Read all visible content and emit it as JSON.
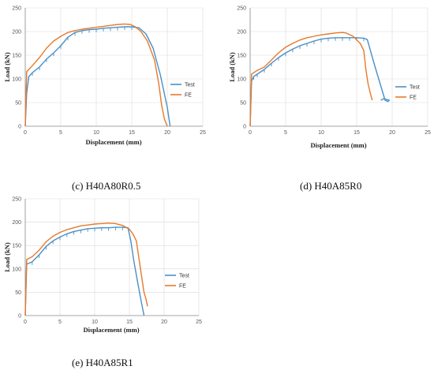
{
  "colors": {
    "test": "#4a8fc7",
    "fe": "#e8792b"
  },
  "captions": {
    "c": "(c) H40A80R0.5",
    "d": "(d) H40A85R0",
    "e": "(e) H40A85R1"
  },
  "chart_data": [
    {
      "type": "line",
      "xlabel": "Displacement (mm)",
      "ylabel": "Load (kN)",
      "xlim": [
        0,
        25
      ],
      "ylim": [
        0,
        250
      ],
      "xticks": [
        "0",
        "5",
        "10",
        "15",
        "20",
        "25"
      ],
      "yticks": [
        "0",
        "50",
        "100",
        "150",
        "200",
        "250"
      ],
      "grid": true,
      "legend": "right",
      "series": [
        {
          "name": "Test",
          "points": [
            [
              0,
              0
            ],
            [
              0.2,
              70
            ],
            [
              0.5,
              105
            ],
            [
              1,
              113
            ],
            [
              2,
              125
            ],
            [
              3,
              142
            ],
            [
              4,
              155
            ],
            [
              5,
              170
            ],
            [
              6,
              188
            ],
            [
              7,
              198
            ],
            [
              8,
              202
            ],
            [
              9,
              204
            ],
            [
              10,
              205
            ],
            [
              11,
              207
            ],
            [
              12,
              208
            ],
            [
              13,
              209
            ],
            [
              14,
              210
            ],
            [
              15,
              210
            ],
            [
              16,
              208
            ],
            [
              17,
              195
            ],
            [
              18,
              165
            ],
            [
              19,
              110
            ],
            [
              20,
              40
            ],
            [
              20.4,
              0
            ]
          ]
        },
        {
          "name": "FE",
          "points": [
            [
              0,
              0
            ],
            [
              0.2,
              115
            ],
            [
              1,
              128
            ],
            [
              2,
              145
            ],
            [
              3,
              165
            ],
            [
              4,
              180
            ],
            [
              5,
              190
            ],
            [
              6,
              198
            ],
            [
              7,
              202
            ],
            [
              8,
              205
            ],
            [
              9,
              207
            ],
            [
              10,
              209
            ],
            [
              11,
              211
            ],
            [
              12,
              213
            ],
            [
              13,
              215
            ],
            [
              14,
              216
            ],
            [
              14.8,
              215
            ],
            [
              15.5,
              210
            ],
            [
              16.3,
              200
            ],
            [
              17.2,
              180
            ],
            [
              18.2,
              140
            ],
            [
              18.8,
              90
            ],
            [
              19.2,
              45
            ],
            [
              19.6,
              15
            ],
            [
              20,
              0
            ]
          ]
        }
      ]
    },
    {
      "type": "line",
      "xlabel": "Displacement (mm)",
      "ylabel": "Load  (kN)",
      "xlim": [
        0,
        25
      ],
      "ylim": [
        0,
        250
      ],
      "xticks": [
        "0",
        "5",
        "10",
        "15",
        "20",
        "25"
      ],
      "yticks": [
        "0",
        "50",
        "100",
        "150",
        "200",
        "250"
      ],
      "grid": true,
      "legend": "right",
      "series": [
        {
          "name": "Test",
          "points": [
            [
              0,
              0
            ],
            [
              0.2,
              95
            ],
            [
              0.5,
              105
            ],
            [
              1,
              110
            ],
            [
              2,
              120
            ],
            [
              3,
              133
            ],
            [
              4,
              145
            ],
            [
              5,
              155
            ],
            [
              6,
              163
            ],
            [
              7,
              170
            ],
            [
              8,
              175
            ],
            [
              9,
              180
            ],
            [
              10,
              184
            ],
            [
              11,
              186
            ],
            [
              12,
              187
            ],
            [
              13,
              187
            ],
            [
              14,
              187
            ],
            [
              15,
              187
            ],
            [
              16,
              186
            ],
            [
              16.5,
              183
            ],
            [
              17.5,
              130
            ],
            [
              18.5,
              80
            ],
            [
              19,
              55
            ],
            [
              19.4,
              52
            ],
            [
              19.6,
              55
            ],
            [
              18.8,
              58
            ],
            [
              18.4,
              55
            ]
          ]
        },
        {
          "name": "FE",
          "points": [
            [
              0,
              0
            ],
            [
              0.2,
              110
            ],
            [
              1,
              118
            ],
            [
              2,
              125
            ],
            [
              3,
              140
            ],
            [
              4,
              155
            ],
            [
              5,
              167
            ],
            [
              6,
              175
            ],
            [
              7,
              182
            ],
            [
              8,
              187
            ],
            [
              9,
              190
            ],
            [
              10,
              193
            ],
            [
              11,
              195
            ],
            [
              12,
              197
            ],
            [
              13,
              198
            ],
            [
              13.5,
              197
            ],
            [
              14.5,
              190
            ],
            [
              15.5,
              175
            ],
            [
              16,
              160
            ],
            [
              16.3,
              120
            ],
            [
              16.6,
              90
            ],
            [
              17,
              65
            ],
            [
              17.2,
              55
            ]
          ]
        }
      ]
    },
    {
      "type": "line",
      "xlabel": "Displacement (mm)",
      "ylabel": "Load (kN)",
      "xlim": [
        0,
        25
      ],
      "ylim": [
        0,
        250
      ],
      "xticks": [
        "0",
        "5",
        "10",
        "15",
        "20",
        "25"
      ],
      "yticks": [
        "0",
        "50",
        "100",
        "150",
        "200",
        "250"
      ],
      "grid": true,
      "legend": "right",
      "series": [
        {
          "name": "Test",
          "points": [
            [
              0,
              0
            ],
            [
              0.2,
              110
            ],
            [
              1,
              115
            ],
            [
              2,
              130
            ],
            [
              3,
              148
            ],
            [
              4,
              160
            ],
            [
              5,
              168
            ],
            [
              6,
              175
            ],
            [
              7,
              180
            ],
            [
              8,
              183
            ],
            [
              9,
              186
            ],
            [
              10,
              187
            ],
            [
              11,
              188
            ],
            [
              12,
              188
            ],
            [
              13,
              189
            ],
            [
              14,
              189
            ],
            [
              14.8,
              188
            ],
            [
              15.2,
              160
            ],
            [
              15.6,
              120
            ],
            [
              16.2,
              70
            ],
            [
              16.7,
              30
            ],
            [
              17.1,
              0
            ]
          ]
        },
        {
          "name": "FE",
          "points": [
            [
              0,
              0
            ],
            [
              0.2,
              120
            ],
            [
              1,
              126
            ],
            [
              2,
              140
            ],
            [
              3,
              158
            ],
            [
              4,
              170
            ],
            [
              5,
              178
            ],
            [
              6,
              184
            ],
            [
              7,
              188
            ],
            [
              8,
              192
            ],
            [
              9,
              194
            ],
            [
              10,
              196
            ],
            [
              11,
              197
            ],
            [
              12,
              198
            ],
            [
              13,
              197
            ],
            [
              14,
              193
            ],
            [
              15,
              185
            ],
            [
              15.5,
              175
            ],
            [
              16,
              160
            ],
            [
              16.4,
              120
            ],
            [
              16.8,
              80
            ],
            [
              17.1,
              50
            ],
            [
              17.4,
              35
            ],
            [
              17.6,
              20
            ]
          ]
        }
      ]
    }
  ]
}
